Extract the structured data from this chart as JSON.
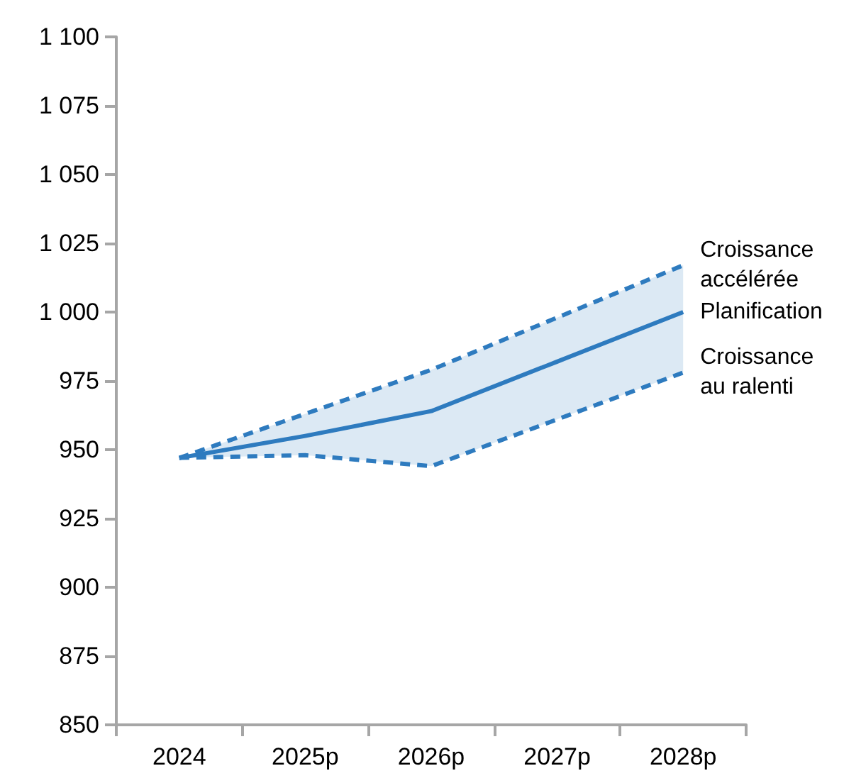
{
  "chart_data": {
    "type": "line",
    "categories": [
      "2024",
      "2025p",
      "2026p",
      "2027p",
      "2028p"
    ],
    "series": [
      {
        "name": "Croissance accélérée",
        "color": "#2e7bbf",
        "line_style": "dashed",
        "values": [
          947,
          963,
          979,
          998,
          1017
        ]
      },
      {
        "name": "Planification",
        "color": "#2e7bbf",
        "line_style": "solid",
        "values": [
          947,
          955,
          964,
          982,
          1000
        ],
        "lower": [
          947,
          948,
          944,
          961,
          978
        ],
        "upper": [
          947,
          963,
          979,
          998,
          1017
        ]
      },
      {
        "name": "Croissance au ralenti",
        "color": "#2e7bbf",
        "line_style": "dashed",
        "values": [
          947,
          948,
          944,
          961,
          978
        ]
      }
    ],
    "ylim": [
      850,
      1100
    ],
    "yticks": [
      850,
      875,
      900,
      925,
      950,
      975,
      {
        "value": 1000,
        "label": "1 000"
      },
      {
        "value": 1025,
        "label": "1 025"
      },
      {
        "value": 1050,
        "label": "1 050"
      },
      {
        "value": 1075,
        "label": "1 075"
      },
      {
        "value": 1100,
        "label": "1 100"
      }
    ],
    "grid": false,
    "legend": false,
    "marker": "none"
  }
}
